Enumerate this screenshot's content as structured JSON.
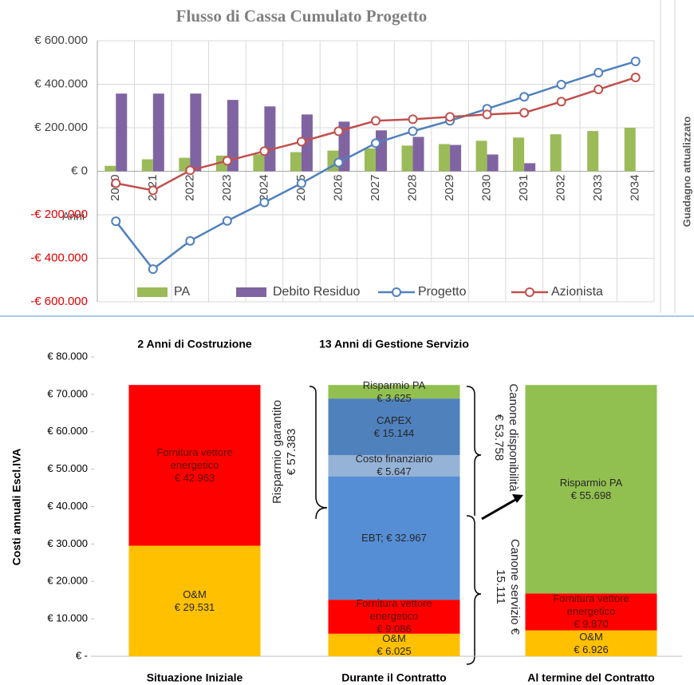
{
  "chart_data": [
    {
      "type": "combo",
      "title": "Flusso di Cassa Cumulato Progetto",
      "x_label": "Anni",
      "categories": [
        "2020",
        "2021",
        "2022",
        "2023",
        "2024",
        "2025",
        "2026",
        "2027",
        "2028",
        "2029",
        "2030",
        "2031",
        "2032",
        "2033",
        "2034"
      ],
      "series": [
        {
          "name": "PA",
          "type": "bar",
          "color": "#9bbb59",
          "values": [
            25000,
            55000,
            62000,
            72000,
            78000,
            88000,
            95000,
            105000,
            118000,
            125000,
            140000,
            155000,
            170000,
            185000,
            200000
          ]
        },
        {
          "name": "Debito Residuo",
          "type": "bar",
          "color": "#8064a2",
          "values": [
            357000,
            357000,
            357000,
            328000,
            298000,
            261000,
            228000,
            188000,
            158000,
            121000,
            77000,
            37000,
            0,
            0,
            0
          ]
        },
        {
          "name": "Progetto",
          "type": "line",
          "color": "#4f81bd",
          "values": [
            -230000,
            -450000,
            -320000,
            -228000,
            -143000,
            -55000,
            40000,
            129000,
            184000,
            232000,
            287000,
            342000,
            398000,
            453000,
            505000
          ]
        },
        {
          "name": "Azionista",
          "type": "line",
          "color": "#c0504d",
          "values": [
            -55000,
            -88000,
            4000,
            48000,
            92000,
            136000,
            184000,
            232000,
            239000,
            250000,
            261000,
            269000,
            320000,
            376000,
            431000
          ]
        }
      ],
      "ylim": [
        -600000,
        600000
      ],
      "yticks": [
        {
          "value": -600000,
          "label": "-€ 600.000"
        },
        {
          "value": -400000,
          "label": "-€ 400.000"
        },
        {
          "value": -200000,
          "label": "-€ 200.000"
        },
        {
          "value": 0,
          "label": "€ 0"
        },
        {
          "value": 200000,
          "label": "€ 200.000"
        },
        {
          "value": 400000,
          "label": "€ 400.000"
        },
        {
          "value": 600000,
          "label": "€ 600.000"
        }
      ],
      "negative_tick_color": "#e00000",
      "grid": true,
      "legend": "bottom"
    },
    {
      "type": "stacked_bar",
      "y_label": "Costi annuali Escl.IVA",
      "headers": [
        "2 Anni di Costruzione",
        "13 Anni di Gestione Servizio"
      ],
      "categories": [
        "Situazione Iniziale",
        "Durante il Contratto",
        "Al termine del Contratto"
      ],
      "series": [
        {
          "name": "O&M",
          "color": "#ffc000",
          "label_color": "#262626",
          "values": [
            29531,
            6025,
            6926
          ],
          "value_labels": [
            "€ 29.531",
            "€ 6.025",
            "€ 6.926"
          ]
        },
        {
          "name": "Fornitura vettore energetico",
          "color": "#ff0000",
          "label_color": "#5a1000",
          "values": [
            42963,
            9086,
            9870
          ],
          "value_labels": [
            "€ 42.963",
            "€ 9.086",
            "€ 9.870"
          ]
        },
        {
          "name": "EBT",
          "color": "#558ed5",
          "label_color": "#262626",
          "inline_label": true,
          "values": [
            null,
            32967,
            null
          ],
          "value_labels": [
            null,
            "; € 32.967",
            null
          ]
        },
        {
          "name": "Costo finanziario",
          "color": "#95b3d7",
          "label_color": "#262626",
          "values": [
            null,
            5647,
            null
          ],
          "value_labels": [
            null,
            "€ 5.647",
            null
          ]
        },
        {
          "name": "CAPEX",
          "color": "#4f81bd",
          "label_color": "#262626",
          "values": [
            null,
            15144,
            null
          ],
          "value_labels": [
            null,
            "€ 15.144",
            null
          ]
        },
        {
          "name": "Risparmio PA",
          "color": "#92c050",
          "label_color": "#262626",
          "values": [
            null,
            3625,
            55698
          ],
          "value_labels": [
            null,
            "€ 3.625",
            "€ 55.698"
          ]
        }
      ],
      "annotations": [
        "Risparmio garantito € 57.383",
        "Canone disponibilità € 53.758",
        "Canone servizio € 15.111"
      ],
      "ylim": [
        0,
        80000
      ],
      "yticks": [
        {
          "value": 0,
          "label": "€ -"
        },
        {
          "value": 10000,
          "label": "€ 10.000"
        },
        {
          "value": 20000,
          "label": "€ 20.000"
        },
        {
          "value": 30000,
          "label": "€ 30.000"
        },
        {
          "value": 40000,
          "label": "€ 40.000"
        },
        {
          "value": 50000,
          "label": "€ 50.000"
        },
        {
          "value": 60000,
          "label": "€ 60.000"
        },
        {
          "value": 70000,
          "label": "€ 70.000"
        },
        {
          "value": 80000,
          "label": "€ 80.000"
        }
      ]
    }
  ],
  "side_panel": {
    "axis_label": "Guadagno attualizzato"
  }
}
